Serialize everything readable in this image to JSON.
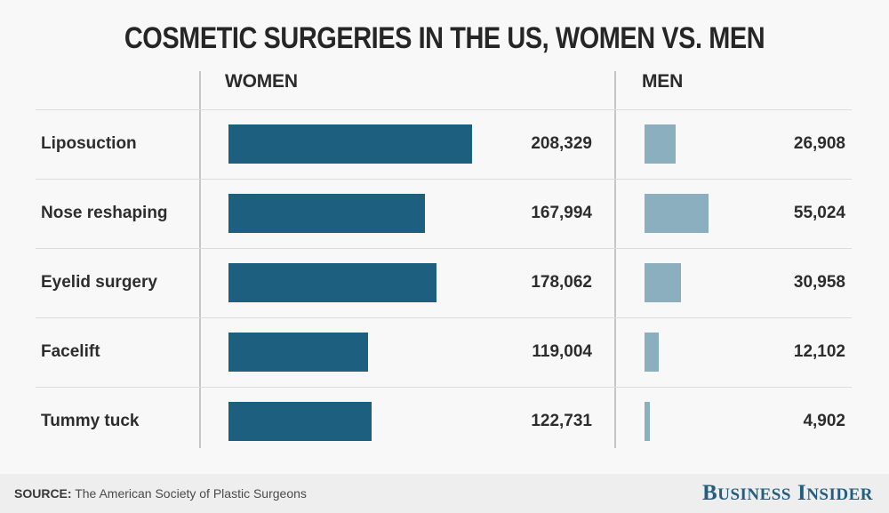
{
  "title": "COSMETIC SURGERIES IN THE US, WOMEN VS. MEN",
  "columns": {
    "women_header": "WOMEN",
    "men_header": "MEN"
  },
  "chart_data": {
    "type": "bar",
    "orientation": "horizontal",
    "title": "COSMETIC SURGERIES IN THE US, WOMEN VS. MEN",
    "categories": [
      "Liposuction",
      "Nose reshaping",
      "Eyelid surgery",
      "Facelift",
      "Tummy tuck"
    ],
    "series": [
      {
        "name": "WOMEN",
        "color": "#1c5f7e",
        "values": [
          208329,
          167994,
          178062,
          119004,
          122731
        ],
        "labels": [
          "208,329",
          "167,994",
          "178,062",
          "119,004",
          "122,731"
        ]
      },
      {
        "name": "MEN",
        "color": "#8cafc0",
        "values": [
          26908,
          55024,
          30958,
          12102,
          4902
        ],
        "labels": [
          "26,908",
          "55,024",
          "30,958",
          "12,102",
          "4,902"
        ]
      }
    ],
    "legend_position": "column-headers",
    "grid": "row-dividers",
    "value_labels_shown": true
  },
  "footer": {
    "source_label": "SOURCE:",
    "source_text": "The American Society of Plastic Surgeons",
    "brand": "BUSINESS INSIDER"
  },
  "colors": {
    "background": "#f8f8f8",
    "footer_background": "#eeeeee",
    "women_bar": "#1c5f7e",
    "men_bar": "#8cafc0",
    "text": "#2d2d2d",
    "brand": "#235e80"
  }
}
